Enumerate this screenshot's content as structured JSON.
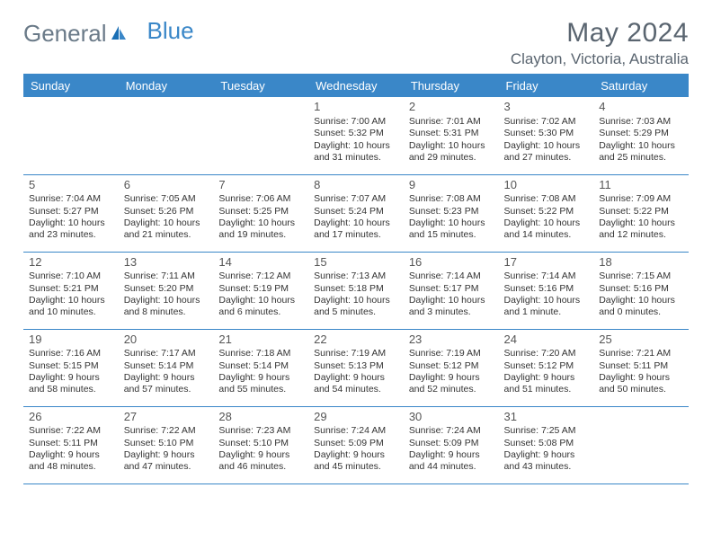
{
  "logo": {
    "text1": "General",
    "text2": "Blue"
  },
  "title": "May 2024",
  "location": "Clayton, Victoria, Australia",
  "colors": {
    "accent": "#3a87c8",
    "header_text": "#ffffff",
    "title_text": "#5a6570",
    "cell_text": "#333333",
    "background": "#ffffff"
  },
  "weekdays": [
    "Sunday",
    "Monday",
    "Tuesday",
    "Wednesday",
    "Thursday",
    "Friday",
    "Saturday"
  ],
  "weeks": [
    [
      {
        "day": "",
        "sunrise": "",
        "sunset": "",
        "daylight1": "",
        "daylight2": ""
      },
      {
        "day": "",
        "sunrise": "",
        "sunset": "",
        "daylight1": "",
        "daylight2": ""
      },
      {
        "day": "",
        "sunrise": "",
        "sunset": "",
        "daylight1": "",
        "daylight2": ""
      },
      {
        "day": "1",
        "sunrise": "Sunrise: 7:00 AM",
        "sunset": "Sunset: 5:32 PM",
        "daylight1": "Daylight: 10 hours",
        "daylight2": "and 31 minutes."
      },
      {
        "day": "2",
        "sunrise": "Sunrise: 7:01 AM",
        "sunset": "Sunset: 5:31 PM",
        "daylight1": "Daylight: 10 hours",
        "daylight2": "and 29 minutes."
      },
      {
        "day": "3",
        "sunrise": "Sunrise: 7:02 AM",
        "sunset": "Sunset: 5:30 PM",
        "daylight1": "Daylight: 10 hours",
        "daylight2": "and 27 minutes."
      },
      {
        "day": "4",
        "sunrise": "Sunrise: 7:03 AM",
        "sunset": "Sunset: 5:29 PM",
        "daylight1": "Daylight: 10 hours",
        "daylight2": "and 25 minutes."
      }
    ],
    [
      {
        "day": "5",
        "sunrise": "Sunrise: 7:04 AM",
        "sunset": "Sunset: 5:27 PM",
        "daylight1": "Daylight: 10 hours",
        "daylight2": "and 23 minutes."
      },
      {
        "day": "6",
        "sunrise": "Sunrise: 7:05 AM",
        "sunset": "Sunset: 5:26 PM",
        "daylight1": "Daylight: 10 hours",
        "daylight2": "and 21 minutes."
      },
      {
        "day": "7",
        "sunrise": "Sunrise: 7:06 AM",
        "sunset": "Sunset: 5:25 PM",
        "daylight1": "Daylight: 10 hours",
        "daylight2": "and 19 minutes."
      },
      {
        "day": "8",
        "sunrise": "Sunrise: 7:07 AM",
        "sunset": "Sunset: 5:24 PM",
        "daylight1": "Daylight: 10 hours",
        "daylight2": "and 17 minutes."
      },
      {
        "day": "9",
        "sunrise": "Sunrise: 7:08 AM",
        "sunset": "Sunset: 5:23 PM",
        "daylight1": "Daylight: 10 hours",
        "daylight2": "and 15 minutes."
      },
      {
        "day": "10",
        "sunrise": "Sunrise: 7:08 AM",
        "sunset": "Sunset: 5:22 PM",
        "daylight1": "Daylight: 10 hours",
        "daylight2": "and 14 minutes."
      },
      {
        "day": "11",
        "sunrise": "Sunrise: 7:09 AM",
        "sunset": "Sunset: 5:22 PM",
        "daylight1": "Daylight: 10 hours",
        "daylight2": "and 12 minutes."
      }
    ],
    [
      {
        "day": "12",
        "sunrise": "Sunrise: 7:10 AM",
        "sunset": "Sunset: 5:21 PM",
        "daylight1": "Daylight: 10 hours",
        "daylight2": "and 10 minutes."
      },
      {
        "day": "13",
        "sunrise": "Sunrise: 7:11 AM",
        "sunset": "Sunset: 5:20 PM",
        "daylight1": "Daylight: 10 hours",
        "daylight2": "and 8 minutes."
      },
      {
        "day": "14",
        "sunrise": "Sunrise: 7:12 AM",
        "sunset": "Sunset: 5:19 PM",
        "daylight1": "Daylight: 10 hours",
        "daylight2": "and 6 minutes."
      },
      {
        "day": "15",
        "sunrise": "Sunrise: 7:13 AM",
        "sunset": "Sunset: 5:18 PM",
        "daylight1": "Daylight: 10 hours",
        "daylight2": "and 5 minutes."
      },
      {
        "day": "16",
        "sunrise": "Sunrise: 7:14 AM",
        "sunset": "Sunset: 5:17 PM",
        "daylight1": "Daylight: 10 hours",
        "daylight2": "and 3 minutes."
      },
      {
        "day": "17",
        "sunrise": "Sunrise: 7:14 AM",
        "sunset": "Sunset: 5:16 PM",
        "daylight1": "Daylight: 10 hours",
        "daylight2": "and 1 minute."
      },
      {
        "day": "18",
        "sunrise": "Sunrise: 7:15 AM",
        "sunset": "Sunset: 5:16 PM",
        "daylight1": "Daylight: 10 hours",
        "daylight2": "and 0 minutes."
      }
    ],
    [
      {
        "day": "19",
        "sunrise": "Sunrise: 7:16 AM",
        "sunset": "Sunset: 5:15 PM",
        "daylight1": "Daylight: 9 hours",
        "daylight2": "and 58 minutes."
      },
      {
        "day": "20",
        "sunrise": "Sunrise: 7:17 AM",
        "sunset": "Sunset: 5:14 PM",
        "daylight1": "Daylight: 9 hours",
        "daylight2": "and 57 minutes."
      },
      {
        "day": "21",
        "sunrise": "Sunrise: 7:18 AM",
        "sunset": "Sunset: 5:14 PM",
        "daylight1": "Daylight: 9 hours",
        "daylight2": "and 55 minutes."
      },
      {
        "day": "22",
        "sunrise": "Sunrise: 7:19 AM",
        "sunset": "Sunset: 5:13 PM",
        "daylight1": "Daylight: 9 hours",
        "daylight2": "and 54 minutes."
      },
      {
        "day": "23",
        "sunrise": "Sunrise: 7:19 AM",
        "sunset": "Sunset: 5:12 PM",
        "daylight1": "Daylight: 9 hours",
        "daylight2": "and 52 minutes."
      },
      {
        "day": "24",
        "sunrise": "Sunrise: 7:20 AM",
        "sunset": "Sunset: 5:12 PM",
        "daylight1": "Daylight: 9 hours",
        "daylight2": "and 51 minutes."
      },
      {
        "day": "25",
        "sunrise": "Sunrise: 7:21 AM",
        "sunset": "Sunset: 5:11 PM",
        "daylight1": "Daylight: 9 hours",
        "daylight2": "and 50 minutes."
      }
    ],
    [
      {
        "day": "26",
        "sunrise": "Sunrise: 7:22 AM",
        "sunset": "Sunset: 5:11 PM",
        "daylight1": "Daylight: 9 hours",
        "daylight2": "and 48 minutes."
      },
      {
        "day": "27",
        "sunrise": "Sunrise: 7:22 AM",
        "sunset": "Sunset: 5:10 PM",
        "daylight1": "Daylight: 9 hours",
        "daylight2": "and 47 minutes."
      },
      {
        "day": "28",
        "sunrise": "Sunrise: 7:23 AM",
        "sunset": "Sunset: 5:10 PM",
        "daylight1": "Daylight: 9 hours",
        "daylight2": "and 46 minutes."
      },
      {
        "day": "29",
        "sunrise": "Sunrise: 7:24 AM",
        "sunset": "Sunset: 5:09 PM",
        "daylight1": "Daylight: 9 hours",
        "daylight2": "and 45 minutes."
      },
      {
        "day": "30",
        "sunrise": "Sunrise: 7:24 AM",
        "sunset": "Sunset: 5:09 PM",
        "daylight1": "Daylight: 9 hours",
        "daylight2": "and 44 minutes."
      },
      {
        "day": "31",
        "sunrise": "Sunrise: 7:25 AM",
        "sunset": "Sunset: 5:08 PM",
        "daylight1": "Daylight: 9 hours",
        "daylight2": "and 43 minutes."
      },
      {
        "day": "",
        "sunrise": "",
        "sunset": "",
        "daylight1": "",
        "daylight2": ""
      }
    ]
  ]
}
